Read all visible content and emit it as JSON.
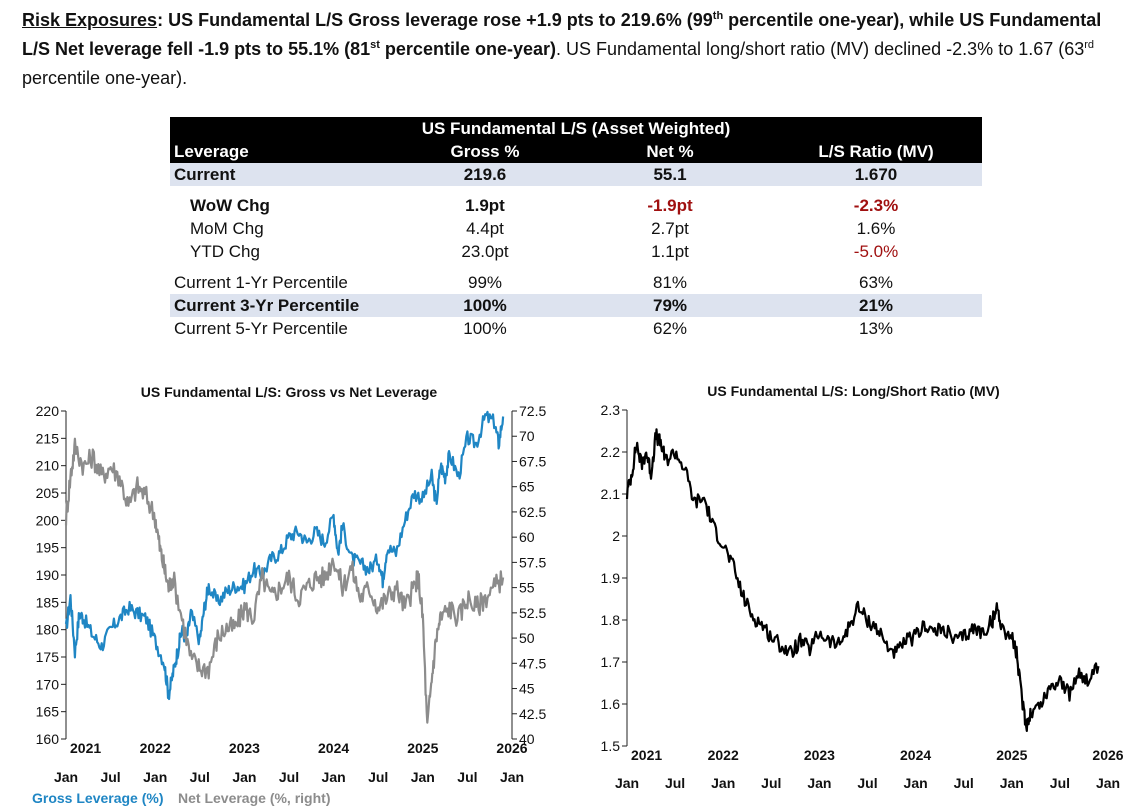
{
  "headline": {
    "label": "Risk Exposures",
    "colon": ":",
    "bold1": " US Fundamental L/S Gross leverage rose +1.9 pts to 219.6% (99",
    "sup1": "th",
    "bold2": " percentile one-year), while US Fundamental L/S Net leverage fell -1.9 pts to 55.1% (81",
    "sup2": "st",
    "bold3": " percentile one-year)",
    "plain1": ". US Fundamental long/short ratio (MV) declined -2.3% to 1.67 (63",
    "sup3": "rd",
    "plain2": " percentile one-year)."
  },
  "table": {
    "title": "US Fundamental L/S (Asset Weighted)",
    "headers": [
      "Leverage",
      "Gross %",
      "Net %",
      "L/S Ratio (MV)"
    ],
    "current": {
      "label": "Current",
      "gross": "219.6",
      "net": "55.1",
      "ratio": "1.670"
    },
    "wow": {
      "label": "WoW Chg",
      "gross": "1.9pt",
      "net": "-1.9pt",
      "ratio": "-2.3%"
    },
    "mom": {
      "label": "MoM Chg",
      "gross": "4.4pt",
      "net": "2.7pt",
      "ratio": "1.6%"
    },
    "ytd": {
      "label": "YTD Chg",
      "gross": "23.0pt",
      "net": "1.1pt",
      "ratio": "-5.0%"
    },
    "p1": {
      "label": "Current 1-Yr Percentile",
      "gross": "99%",
      "net": "81%",
      "ratio": "63%"
    },
    "p3": {
      "label": "Current 3-Yr Percentile",
      "gross": "100%",
      "net": "79%",
      "ratio": "21%"
    },
    "p5": {
      "label": "Current 5-Yr Percentile",
      "gross": "100%",
      "net": "62%",
      "ratio": "13%"
    },
    "neg_color": "#a01010"
  },
  "chart_data": [
    {
      "type": "line",
      "title": "US Fundamental L/S: Gross vs Net Leverage",
      "x_label_units": "date (fractional year)",
      "xlim": [
        2021.0,
        2026.0
      ],
      "ylim": [
        160,
        220
      ],
      "y2lim": [
        40,
        72.5
      ],
      "yticks": [
        "220",
        "215",
        "210",
        "205",
        "200",
        "195",
        "190",
        "185",
        "180",
        "175",
        "170",
        "165",
        "160"
      ],
      "y2ticks": [
        "72.5",
        "70",
        "67.5",
        "65",
        "62.5",
        "60",
        "57.5",
        "55",
        "52.5",
        "50",
        "47.5",
        "45",
        "42.5",
        "40"
      ],
      "year_labels": [
        "2021",
        "2022",
        "2023",
        "2024",
        "2025",
        "2026"
      ],
      "month_labels": [
        "Jan",
        "Jul",
        "Jan",
        "Jul",
        "Jan",
        "Jul",
        "Jan",
        "Jul",
        "Jan",
        "Jul",
        "Jan"
      ],
      "legend": [
        "Gross Leverage (%)",
        "Net Leverage (%, right)"
      ],
      "series": [
        {
          "name": "Gross Leverage (%)",
          "axis": "left",
          "color": "#1f86c4",
          "x": [
            2021.0,
            2021.05,
            2021.1,
            2021.15,
            2021.2,
            2021.3,
            2021.4,
            2021.5,
            2021.6,
            2021.7,
            2021.8,
            2021.9,
            2022.0,
            2022.1,
            2022.15,
            2022.2,
            2022.25,
            2022.3,
            2022.35,
            2022.4,
            2022.5,
            2022.55,
            2022.6,
            2022.7,
            2022.8,
            2022.9,
            2023.0,
            2023.1,
            2023.2,
            2023.3,
            2023.4,
            2023.5,
            2023.6,
            2023.7,
            2023.8,
            2023.9,
            2024.0,
            2024.05,
            2024.1,
            2024.2,
            2024.3,
            2024.4,
            2024.5,
            2024.55,
            2024.6,
            2024.7,
            2024.8,
            2024.9,
            2025.0,
            2025.1,
            2025.15,
            2025.2,
            2025.25,
            2025.3,
            2025.4,
            2025.5,
            2025.6,
            2025.7,
            2025.8,
            2025.85,
            2025.9
          ],
          "values": [
            180,
            186,
            176,
            183,
            182,
            179,
            177,
            180,
            182,
            184,
            183,
            182,
            178,
            174,
            168,
            172,
            176,
            180,
            178,
            183,
            178,
            184,
            188,
            185,
            187,
            188,
            188,
            191,
            190,
            193,
            194,
            197,
            198,
            196,
            198,
            196,
            201,
            194,
            199,
            193,
            192,
            191,
            193,
            189,
            195,
            194,
            200,
            205,
            204,
            208,
            203,
            210,
            208,
            212,
            208,
            215,
            214,
            219,
            218,
            214,
            219
          ]
        },
        {
          "name": "Net Leverage (%, right)",
          "axis": "right",
          "color": "#8c8c8c",
          "x": [
            2021.0,
            2021.05,
            2021.1,
            2021.2,
            2021.3,
            2021.4,
            2021.5,
            2021.6,
            2021.7,
            2021.8,
            2021.9,
            2022.0,
            2022.05,
            2022.1,
            2022.15,
            2022.2,
            2022.3,
            2022.4,
            2022.5,
            2022.6,
            2022.7,
            2022.8,
            2022.9,
            2023.0,
            2023.1,
            2023.2,
            2023.3,
            2023.4,
            2023.5,
            2023.6,
            2023.7,
            2023.8,
            2023.9,
            2024.0,
            2024.1,
            2024.2,
            2024.3,
            2024.4,
            2024.5,
            2024.6,
            2024.7,
            2024.8,
            2024.9,
            2024.95,
            2025.0,
            2025.05,
            2025.1,
            2025.15,
            2025.2,
            2025.3,
            2025.4,
            2025.5,
            2025.6,
            2025.7,
            2025.8,
            2025.9
          ],
          "values": [
            62,
            66,
            69,
            67,
            68,
            66,
            67,
            66,
            63,
            65,
            64,
            62,
            59,
            57,
            55,
            56,
            52,
            48,
            47,
            47,
            50,
            51,
            51,
            53,
            52,
            56,
            54,
            55,
            56,
            54,
            55,
            56,
            56,
            58,
            55,
            57,
            54,
            55,
            53,
            54,
            55,
            53,
            55,
            56,
            52,
            41,
            46,
            50,
            52,
            53,
            52,
            54,
            53,
            54,
            55,
            56
          ]
        }
      ]
    },
    {
      "type": "line",
      "title": "US Fundamental L/S: Long/Short Ratio (MV)",
      "xlim": [
        2021.0,
        2026.0
      ],
      "ylim": [
        1.5,
        2.3
      ],
      "yticks": [
        "2.3",
        "2.2",
        "2.1",
        "2",
        "1.9",
        "1.8",
        "1.7",
        "1.6",
        "1.5"
      ],
      "year_labels": [
        "2021",
        "2022",
        "2023",
        "2024",
        "2025",
        "2026"
      ],
      "month_labels": [
        "Jan",
        "Jul",
        "Jan",
        "Jul",
        "Jan",
        "Jul",
        "Jan",
        "Jul",
        "Jan",
        "Jul",
        "Jan"
      ],
      "series": [
        {
          "name": "Long/Short Ratio (MV)",
          "axis": "left",
          "color": "#000000",
          "x": [
            2021.0,
            2021.05,
            2021.1,
            2021.15,
            2021.2,
            2021.25,
            2021.3,
            2021.35,
            2021.4,
            2021.5,
            2021.6,
            2021.7,
            2021.8,
            2021.9,
            2022.0,
            2022.1,
            2022.2,
            2022.3,
            2022.4,
            2022.5,
            2022.6,
            2022.7,
            2022.8,
            2022.9,
            2023.0,
            2023.1,
            2023.2,
            2023.3,
            2023.4,
            2023.5,
            2023.6,
            2023.7,
            2023.8,
            2023.9,
            2024.0,
            2024.1,
            2024.2,
            2024.3,
            2024.4,
            2024.5,
            2024.6,
            2024.7,
            2024.8,
            2024.85,
            2024.9,
            2025.0,
            2025.05,
            2025.1,
            2025.15,
            2025.2,
            2025.3,
            2025.4,
            2025.5,
            2025.6,
            2025.7,
            2025.8,
            2025.9
          ],
          "values": [
            2.1,
            2.15,
            2.22,
            2.17,
            2.2,
            2.15,
            2.24,
            2.22,
            2.18,
            2.2,
            2.16,
            2.08,
            2.09,
            2.02,
            1.98,
            1.93,
            1.86,
            1.81,
            1.79,
            1.76,
            1.74,
            1.72,
            1.75,
            1.73,
            1.77,
            1.75,
            1.74,
            1.78,
            1.83,
            1.8,
            1.78,
            1.74,
            1.72,
            1.75,
            1.76,
            1.79,
            1.77,
            1.78,
            1.75,
            1.76,
            1.78,
            1.77,
            1.8,
            1.83,
            1.78,
            1.76,
            1.72,
            1.62,
            1.55,
            1.58,
            1.6,
            1.64,
            1.66,
            1.62,
            1.68,
            1.65,
            1.69
          ]
        }
      ]
    }
  ]
}
